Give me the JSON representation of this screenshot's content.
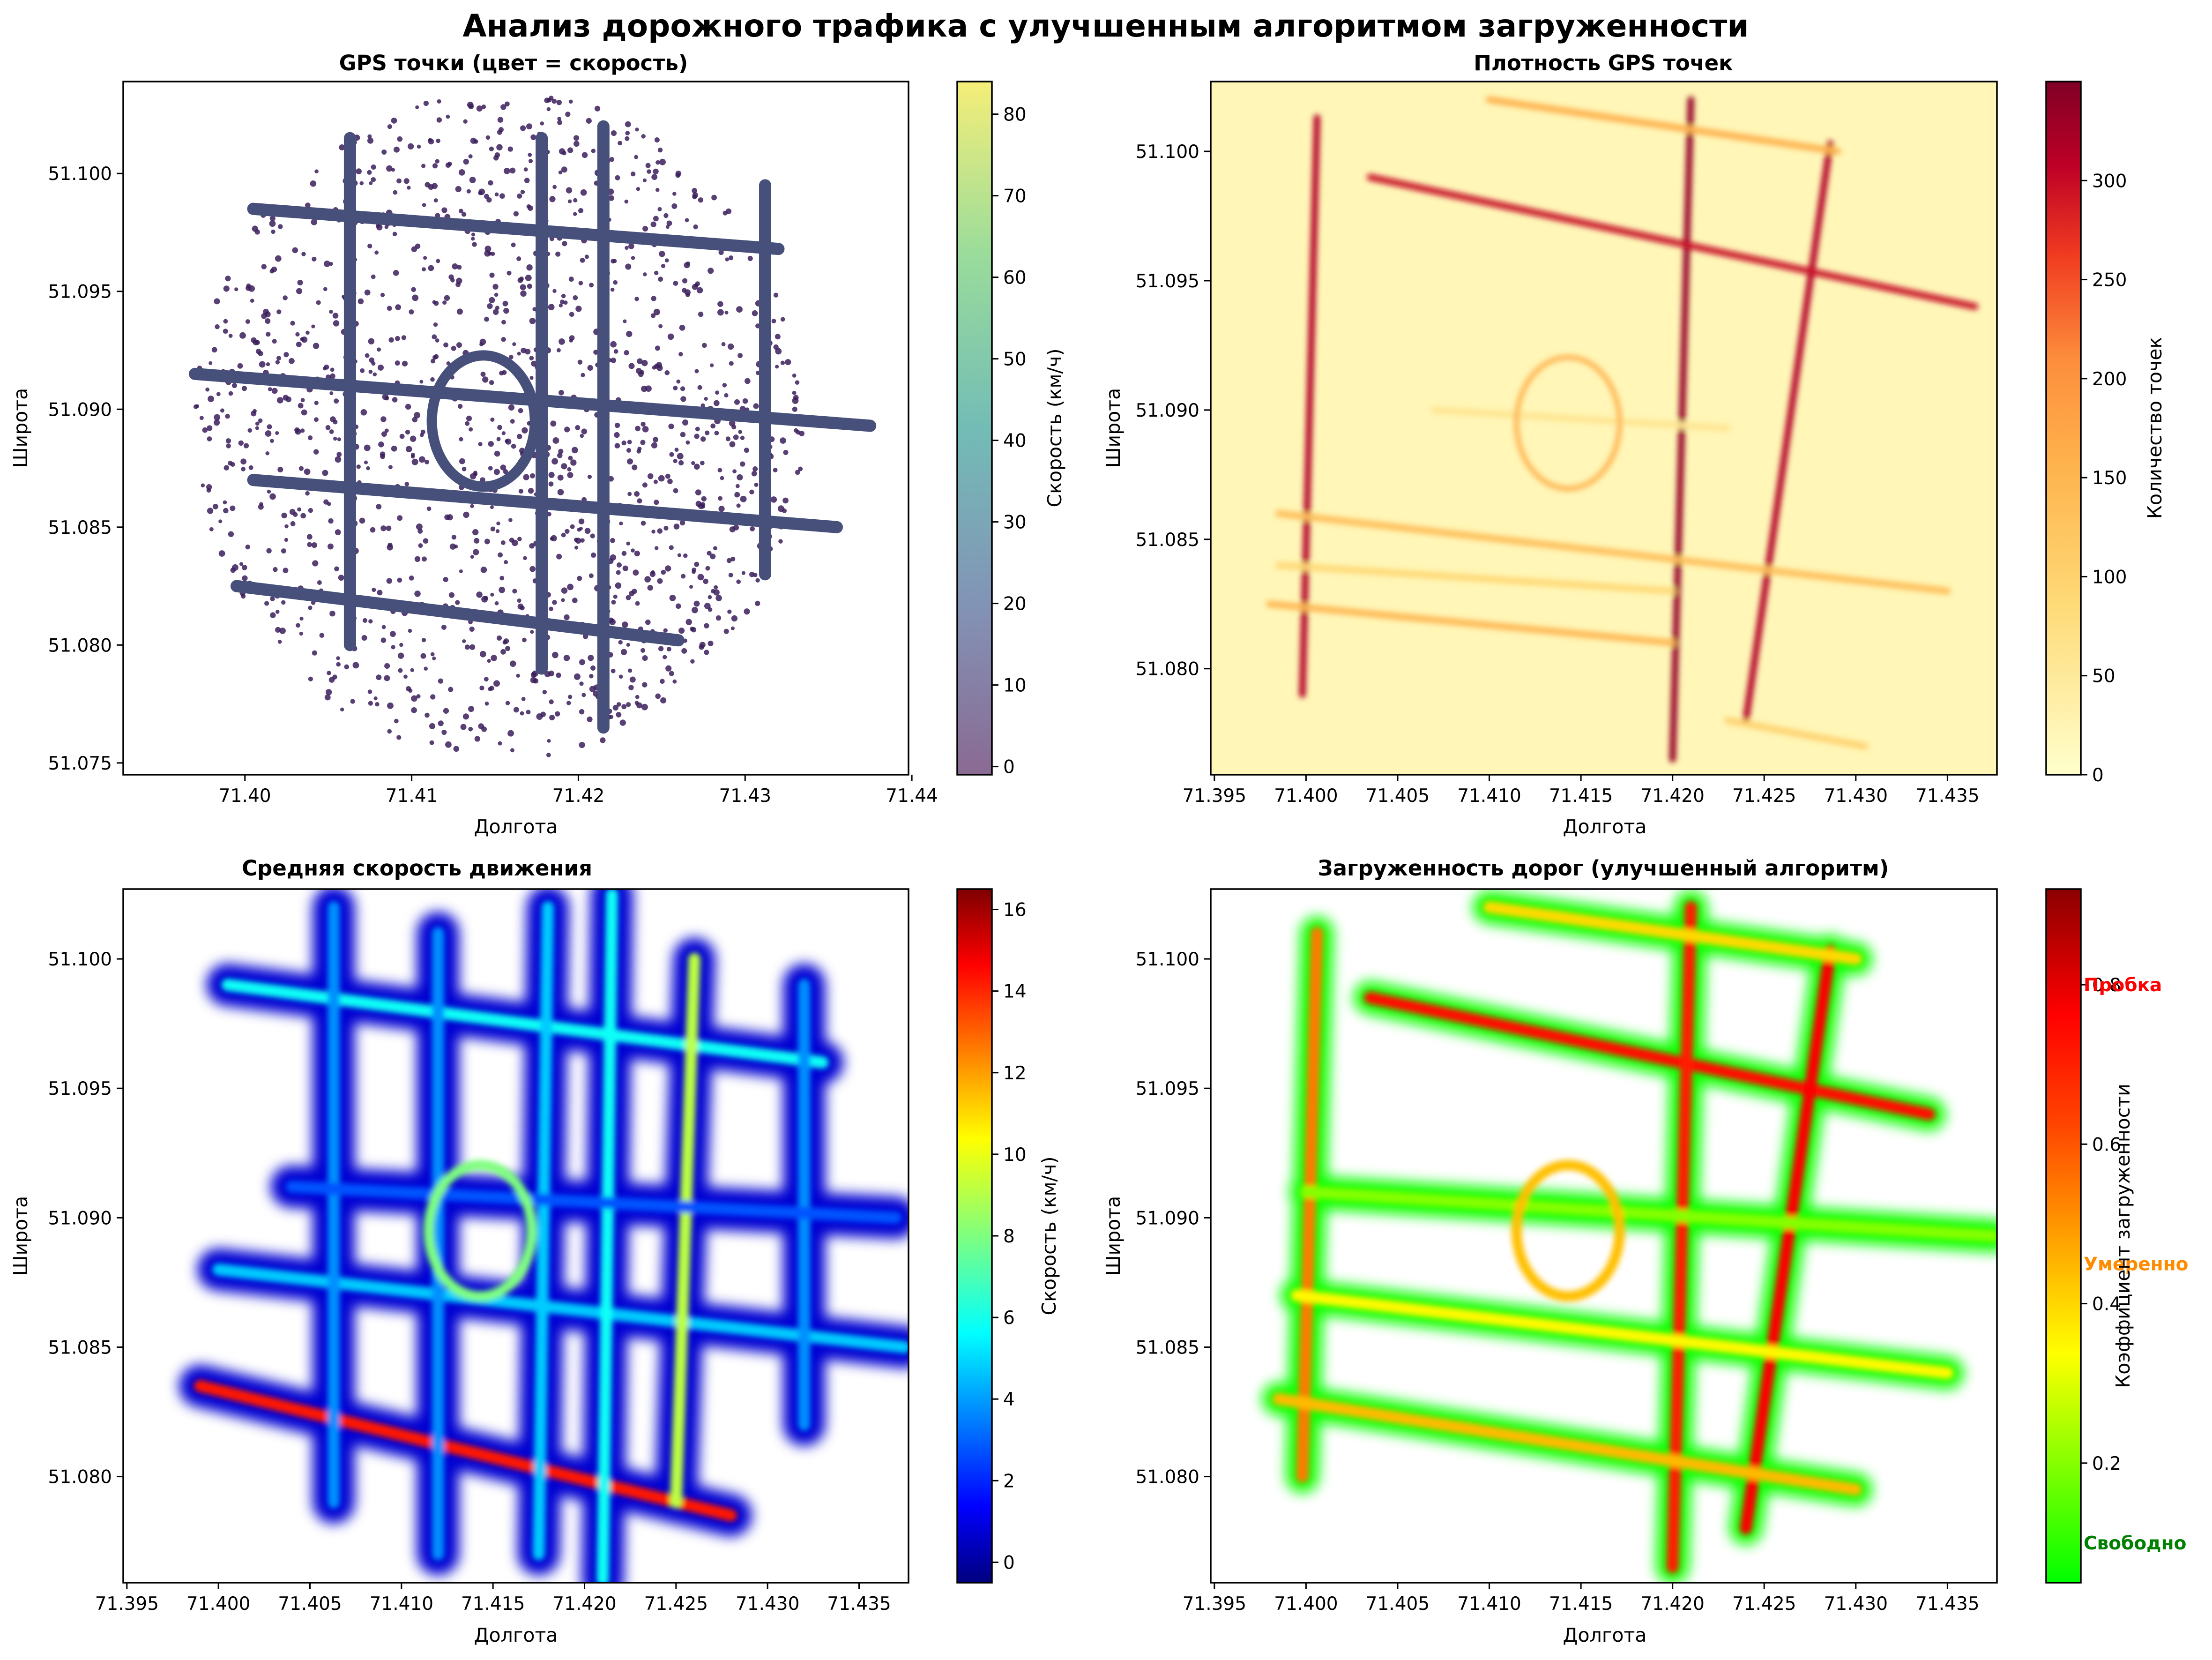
{
  "figure": {
    "title": "Анализ дорожного трафика с улучшенным алгоритмом загруженности"
  },
  "chart_data": [
    {
      "type": "scatter",
      "title": "GPS точки (цвет = скорость)",
      "xlabel": "Долгота",
      "ylabel": "Широта",
      "xlim": [
        71.3927,
        71.4398
      ],
      "ylim": [
        51.0745,
        51.1039
      ],
      "x_ticks": [
        "71.40",
        "71.41",
        "71.42",
        "71.43",
        "71.44"
      ],
      "y_ticks": [
        "51.075",
        "51.080",
        "51.085",
        "51.090",
        "51.095",
        "51.100"
      ],
      "colorbar": {
        "label": "Скорость (км/ч)",
        "colormap": "viridis",
        "range": [
          -1,
          84
        ],
        "ticks": [
          "0",
          "10",
          "20",
          "30",
          "40",
          "50",
          "60",
          "70",
          "80"
        ]
      },
      "description_colors": {
        "points": "#3b1f5c",
        "roads": "#46507a"
      },
      "extent": {
        "center": [
          71.4153,
          51.0893
        ],
        "radius_lon": 0.0183,
        "radius_lat": 0.0142
      },
      "road_segments": [
        [
          [
            71.397,
            51.0915
          ],
          [
            71.4375,
            51.0893
          ]
        ],
        [
          [
            71.4005,
            51.0985
          ],
          [
            71.432,
            51.0968
          ]
        ],
        [
          [
            71.4005,
            51.087
          ],
          [
            71.4355,
            51.085
          ]
        ],
        [
          [
            71.3995,
            51.0825
          ],
          [
            71.426,
            51.0802
          ]
        ],
        [
          [
            71.4063,
            51.1015
          ],
          [
            71.4063,
            51.08
          ]
        ],
        [
          [
            71.4178,
            51.1015
          ],
          [
            71.4178,
            51.079
          ]
        ],
        [
          [
            71.4215,
            51.102
          ],
          [
            71.4215,
            51.0765
          ]
        ],
        [
          [
            71.4312,
            51.0995
          ],
          [
            71.4312,
            51.083
          ]
        ]
      ]
    },
    {
      "type": "heatmap",
      "title": "Плотность GPS точек",
      "xlabel": "Долгота",
      "ylabel": "Широта",
      "xlim": [
        71.3948,
        71.4377
      ],
      "ylim": [
        51.0759,
        51.1027
      ],
      "x_ticks": [
        "71.395",
        "71.400",
        "71.405",
        "71.410",
        "71.415",
        "71.420",
        "71.425",
        "71.430",
        "71.435"
      ],
      "y_ticks": [
        "51.080",
        "51.085",
        "51.090",
        "51.095",
        "51.100"
      ],
      "colorbar": {
        "label": "Количество точек",
        "colormap": "YlOrRd",
        "range": [
          0,
          350
        ],
        "ticks": [
          "0",
          "50",
          "100",
          "150",
          "200",
          "250",
          "300"
        ]
      },
      "road_segments": [
        [
          [
            71.4006,
            51.1013
          ],
          [
            71.3998,
            51.079
          ],
          300
        ],
        [
          [
            71.421,
            51.102
          ],
          [
            71.42,
            51.0765
          ],
          330
        ],
        [
          [
            71.4286,
            51.1003
          ],
          [
            71.424,
            51.078
          ],
          300
        ],
        [
          [
            71.4035,
            51.099
          ],
          [
            71.4365,
            51.094
          ],
          280
        ],
        [
          [
            71.41,
            51.102
          ],
          [
            71.429,
            51.1
          ],
          120
        ],
        [
          [
            71.3985,
            51.086
          ],
          [
            71.435,
            51.083
          ],
          100
        ],
        [
          [
            71.398,
            51.0825
          ],
          [
            71.42,
            51.081
          ],
          110
        ],
        [
          [
            71.423,
            51.078
          ],
          [
            71.4305,
            51.077
          ],
          70
        ],
        [
          [
            71.3985,
            51.084
          ],
          [
            71.42,
            51.083
          ],
          60
        ],
        [
          [
            71.407,
            51.09
          ],
          [
            71.423,
            51.0893
          ],
          40
        ]
      ]
    },
    {
      "type": "heatmap",
      "title": "Средняя скорость движения",
      "xlabel": "Долгота",
      "ylabel": "Широта",
      "xlim": [
        71.3948,
        71.4377
      ],
      "ylim": [
        51.0759,
        51.1027
      ],
      "x_ticks": [
        "71.395",
        "71.400",
        "71.405",
        "71.410",
        "71.415",
        "71.420",
        "71.425",
        "71.430",
        "71.435"
      ],
      "y_ticks": [
        "51.080",
        "51.085",
        "51.090",
        "51.095",
        "51.100"
      ],
      "colorbar": {
        "label": "Скорость (км/ч)",
        "colormap": "jet",
        "range": [
          -0.5,
          16.5
        ],
        "ticks": [
          "0",
          "2",
          "4",
          "6",
          "8",
          "10",
          "12",
          "14",
          "16"
        ]
      },
      "road_segments": [
        [
          [
            71.4005,
            51.099
          ],
          [
            71.433,
            51.096
          ],
          6
        ],
        [
          [
            71.399,
            51.0835
          ],
          [
            71.428,
            51.0785
          ],
          14
        ],
        [
          [
            71.4,
            51.088
          ],
          [
            71.4375,
            51.085
          ],
          5
        ],
        [
          [
            71.4063,
            51.102
          ],
          [
            71.4063,
            51.079
          ],
          4
        ],
        [
          [
            71.412,
            51.101
          ],
          [
            71.412,
            51.077
          ],
          4
        ],
        [
          [
            71.418,
            51.102
          ],
          [
            71.4175,
            51.077
          ],
          5
        ],
        [
          [
            71.4215,
            51.1025
          ],
          [
            71.421,
            51.076
          ],
          6
        ],
        [
          [
            71.426,
            51.1
          ],
          [
            71.425,
            51.079
          ],
          9
        ],
        [
          [
            71.432,
            51.099
          ],
          [
            71.432,
            51.082
          ],
          4
        ],
        [
          [
            71.404,
            51.0912
          ],
          [
            71.437,
            51.09
          ],
          3
        ]
      ]
    },
    {
      "type": "heatmap",
      "title": "Загруженность дорог (улучшенный алгоритм)",
      "xlabel": "Долгота",
      "ylabel": "Широта",
      "xlim": [
        71.3948,
        71.4377
      ],
      "ylim": [
        51.0759,
        51.1027
      ],
      "x_ticks": [
        "71.395",
        "71.400",
        "71.405",
        "71.410",
        "71.415",
        "71.420",
        "71.425",
        "71.430",
        "71.435"
      ],
      "y_ticks": [
        "51.080",
        "51.085",
        "51.090",
        "51.095",
        "51.100"
      ],
      "colorbar": {
        "label": "Коэффициент загруженности",
        "colormap": "green-yellow-red",
        "range": [
          0.05,
          0.92
        ],
        "ticks": [
          "0.2",
          "0.4",
          "0.6",
          "0.8"
        ],
        "level_labels": [
          {
            "text": "Пробка",
            "value": 0.8,
            "color": "#ff0000"
          },
          {
            "text": "Умеренно",
            "value": 0.45,
            "color": "#ff8c00"
          },
          {
            "text": "Свободно",
            "value": 0.1,
            "color": "#008000"
          }
        ]
      },
      "road_segments": [
        [
          [
            71.4035,
            51.0985
          ],
          [
            71.434,
            51.094
          ],
          0.75
        ],
        [
          [
            71.421,
            51.102
          ],
          [
            71.42,
            51.0765
          ],
          0.72
        ],
        [
          [
            71.4286,
            51.1003
          ],
          [
            71.424,
            51.078
          ],
          0.78
        ],
        [
          [
            71.4006,
            51.101
          ],
          [
            71.3998,
            51.08
          ],
          0.55
        ],
        [
          [
            71.3985,
            51.083
          ],
          [
            71.43,
            51.0795
          ],
          0.45
        ],
        [
          [
            71.3995,
            51.087
          ],
          [
            71.435,
            51.084
          ],
          0.35
        ],
        [
          [
            71.4,
            51.091
          ],
          [
            71.4375,
            51.0893
          ],
          0.2
        ],
        [
          [
            71.41,
            51.102
          ],
          [
            71.43,
            51.1
          ],
          0.4
        ]
      ]
    }
  ]
}
